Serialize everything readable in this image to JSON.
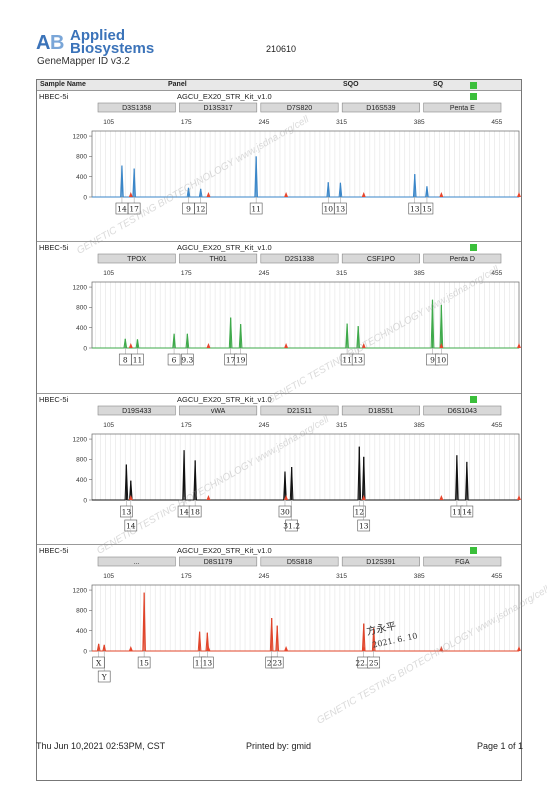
{
  "header": {
    "brand_line1": "Applied",
    "brand_line2": "Biosystems",
    "app_name": "GeneMapper ID v3.2",
    "run_id": "210610",
    "col_sample": "Sample Name",
    "col_panel": "Panel",
    "col_sqo": "SQO",
    "col_sq": "SQ"
  },
  "footer": {
    "date": "Thu Jun 10,2021 02:53PM, CST",
    "printed_by": "Printed by: gmid",
    "page": "Page 1 of 1"
  },
  "signature": {
    "name": "方永平",
    "date": "2021. 6. 10"
  },
  "watermark": "GENETIC TESTING BIOTECHNOLOGY  www.jsdna.org/cell",
  "chart_data": [
    {
      "type": "line",
      "sample": "HBEC-5i",
      "panel": "AGCU_EX20_STR_Kit_v1.0",
      "color": "#3a86c8",
      "x_ticks": [
        105,
        175,
        245,
        315,
        385,
        455
      ],
      "y_ticks": [
        0,
        400,
        800,
        1200
      ],
      "ylim": [
        0,
        1300
      ],
      "markers": [
        "D3S1358",
        "D13S317",
        "D7S820",
        "D16S539",
        "Penta E"
      ],
      "peaks": [
        {
          "x": 117,
          "y": 620
        },
        {
          "x": 128,
          "y": 560
        },
        {
          "x": 177,
          "y": 180
        },
        {
          "x": 188,
          "y": 160
        },
        {
          "x": 238,
          "y": 800
        },
        {
          "x": 303,
          "y": 290
        },
        {
          "x": 314,
          "y": 280
        },
        {
          "x": 381,
          "y": 450
        },
        {
          "x": 392,
          "y": 210
        }
      ],
      "alleles": [
        "14",
        "17",
        "9",
        "12",
        "11",
        "10",
        "13",
        "13",
        "15"
      ]
    },
    {
      "type": "line",
      "sample": "HBEC-5i",
      "panel": "AGCU_EX20_STR_Kit_v1.0",
      "color": "#3ea94a",
      "x_ticks": [
        105,
        175,
        245,
        315,
        385,
        455
      ],
      "y_ticks": [
        0,
        400,
        800,
        1200
      ],
      "ylim": [
        0,
        1300
      ],
      "markers": [
        "TPOX",
        "TH01",
        "D2S1338",
        "CSF1PO",
        "Penta D"
      ],
      "peaks": [
        {
          "x": 120,
          "y": 180
        },
        {
          "x": 131,
          "y": 170
        },
        {
          "x": 164,
          "y": 280
        },
        {
          "x": 176,
          "y": 280
        },
        {
          "x": 215,
          "y": 600
        },
        {
          "x": 224,
          "y": 470
        },
        {
          "x": 320,
          "y": 480
        },
        {
          "x": 330,
          "y": 430
        },
        {
          "x": 397,
          "y": 950
        },
        {
          "x": 405,
          "y": 850
        }
      ],
      "alleles": [
        "8",
        "11",
        "6",
        "9.3",
        "17",
        "19",
        "11",
        "13",
        "9",
        "10"
      ]
    },
    {
      "type": "line",
      "sample": "HBEC-5i",
      "panel": "AGCU_EX20_STR_Kit_v1.0",
      "color": "#111111",
      "x_ticks": [
        105,
        175,
        245,
        315,
        385,
        455
      ],
      "y_ticks": [
        0,
        400,
        800,
        1200
      ],
      "ylim": [
        0,
        1300
      ],
      "markers": [
        "D19S433",
        "vWA",
        "D21S11",
        "D18S51",
        "D6S1043"
      ],
      "peaks": [
        {
          "x": 121,
          "y": 700
        },
        {
          "x": 125,
          "y": 380
        },
        {
          "x": 173,
          "y": 980
        },
        {
          "x": 183,
          "y": 780
        },
        {
          "x": 264,
          "y": 560
        },
        {
          "x": 270,
          "y": 650
        },
        {
          "x": 331,
          "y": 1050
        },
        {
          "x": 335,
          "y": 850
        },
        {
          "x": 419,
          "y": 880
        },
        {
          "x": 428,
          "y": 750
        }
      ],
      "alleles": [
        "13",
        "14",
        "14",
        "18",
        "30",
        "31.2",
        "12",
        "13",
        "11",
        "14"
      ]
    },
    {
      "type": "line",
      "sample": "HBEC-5i",
      "panel": "AGCU_EX20_STR_Kit_v1.0",
      "color": "#e0442a",
      "x_ticks": [
        105,
        175,
        245,
        315,
        385,
        455
      ],
      "y_ticks": [
        0,
        400,
        800,
        1200
      ],
      "ylim": [
        0,
        1300
      ],
      "markers": [
        "...",
        "D8S1179",
        "D5S818",
        "D12S391",
        "FGA"
      ],
      "peaks": [
        {
          "x": 96,
          "y": 140
        },
        {
          "x": 101,
          "y": 120
        },
        {
          "x": 137,
          "y": 1150
        },
        {
          "x": 187,
          "y": 380
        },
        {
          "x": 194,
          "y": 360
        },
        {
          "x": 252,
          "y": 650
        },
        {
          "x": 257,
          "y": 500
        },
        {
          "x": 335,
          "y": 540
        },
        {
          "x": 344,
          "y": 450
        }
      ],
      "alleles": [
        "X",
        "Y",
        "15",
        "11",
        "13",
        "22",
        "23",
        "22.2",
        "25"
      ]
    }
  ]
}
